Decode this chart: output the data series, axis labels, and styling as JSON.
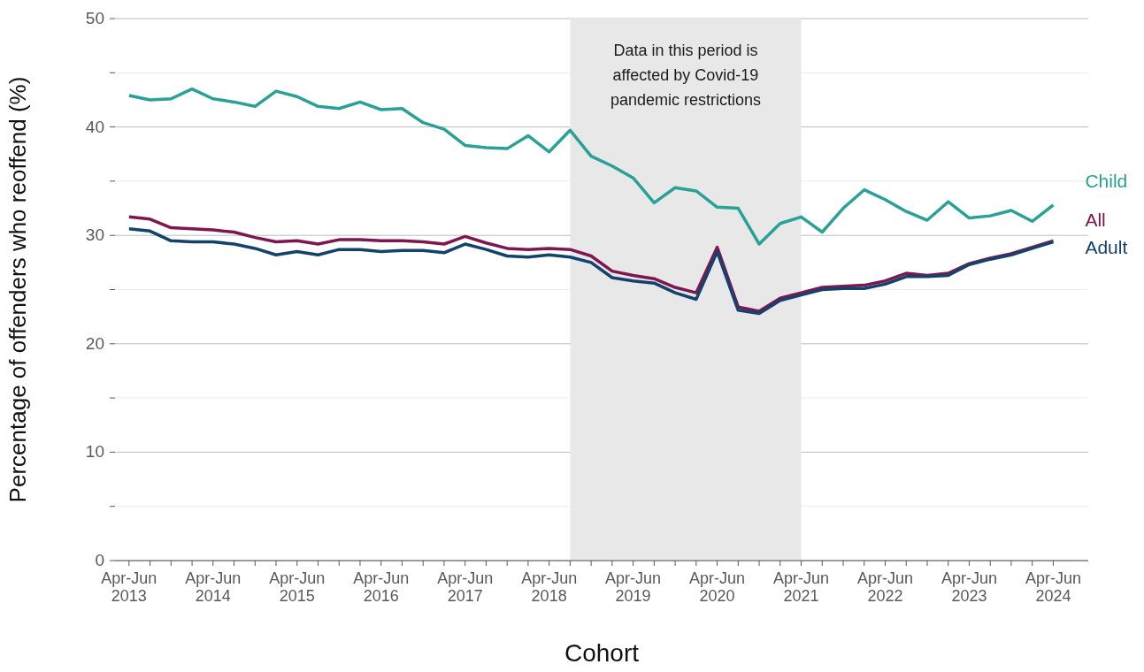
{
  "chart_data": {
    "type": "line",
    "xlabel": "Cohort",
    "ylabel": "Percentage of offenders who reoffend (%)",
    "x": [
      "2013-04",
      "2013-07",
      "2013-10",
      "2014-01",
      "2014-04",
      "2014-07",
      "2014-10",
      "2015-01",
      "2015-04",
      "2015-07",
      "2015-10",
      "2016-01",
      "2016-04",
      "2016-07",
      "2016-10",
      "2017-01",
      "2017-04",
      "2017-07",
      "2017-10",
      "2018-01",
      "2018-04",
      "2018-07",
      "2018-10",
      "2019-01",
      "2019-04",
      "2019-07",
      "2019-10",
      "2020-01",
      "2020-04",
      "2020-07",
      "2020-10",
      "2021-01",
      "2021-04",
      "2021-07",
      "2021-10",
      "2022-01",
      "2022-04",
      "2022-07",
      "2022-10",
      "2023-01",
      "2023-04",
      "2023-07",
      "2023-10",
      "2024-01",
      "2024-04"
    ],
    "series": [
      {
        "name": "Child",
        "color": "#28a197",
        "values": [
          42.9,
          42.5,
          42.6,
          43.5,
          42.6,
          42.3,
          41.9,
          43.3,
          42.8,
          41.9,
          41.7,
          42.3,
          41.6,
          41.7,
          40.4,
          39.8,
          38.3,
          38.1,
          38.0,
          39.2,
          37.7,
          39.7,
          37.3,
          36.4,
          35.3,
          33.0,
          34.4,
          34.1,
          32.6,
          32.5,
          29.2,
          31.1,
          31.7,
          30.3,
          32.5,
          34.2,
          33.3,
          32.2,
          31.4,
          33.1,
          31.6,
          31.8,
          32.3,
          31.3,
          32.8
        ]
      },
      {
        "name": "All",
        "color": "#801650",
        "values": [
          31.7,
          31.5,
          30.7,
          30.6,
          30.5,
          30.3,
          29.8,
          29.4,
          29.5,
          29.2,
          29.6,
          29.6,
          29.5,
          29.5,
          29.4,
          29.2,
          29.9,
          29.3,
          28.8,
          28.7,
          28.8,
          28.7,
          28.1,
          26.7,
          26.3,
          26.0,
          25.2,
          24.7,
          28.9,
          23.4,
          23.0,
          24.2,
          24.7,
          25.2,
          25.3,
          25.4,
          25.8,
          26.5,
          26.3,
          26.5,
          27.4,
          27.9,
          28.3,
          28.9,
          29.5
        ]
      },
      {
        "name": "Adult",
        "color": "#12436d",
        "values": [
          30.6,
          30.4,
          29.5,
          29.4,
          29.4,
          29.2,
          28.8,
          28.2,
          28.5,
          28.2,
          28.7,
          28.7,
          28.5,
          28.6,
          28.6,
          28.4,
          29.2,
          28.7,
          28.1,
          28.0,
          28.2,
          28.0,
          27.5,
          26.1,
          25.8,
          25.6,
          24.7,
          24.1,
          28.5,
          23.1,
          22.8,
          24.0,
          24.5,
          25.0,
          25.1,
          25.1,
          25.5,
          26.2,
          26.2,
          26.3,
          27.3,
          27.8,
          28.2,
          28.8,
          29.4
        ]
      }
    ],
    "xlim": [
      "2013-02",
      "2024-09"
    ],
    "xticks": [
      {
        "value": "2013-04",
        "label": "Apr-Jun\n2013"
      },
      {
        "value": "2013-07",
        "label": null
      },
      {
        "value": "2013-10",
        "label": null
      },
      {
        "value": "2014-01",
        "label": null
      },
      {
        "value": "2014-04",
        "label": "Apr-Jun\n2014"
      },
      {
        "value": "2014-07",
        "label": null
      },
      {
        "value": "2014-10",
        "label": null
      },
      {
        "value": "2015-01",
        "label": null
      },
      {
        "value": "2015-04",
        "label": "Apr-Jun\n2015"
      },
      {
        "value": "2015-07",
        "label": null
      },
      {
        "value": "2015-10",
        "label": null
      },
      {
        "value": "2016-01",
        "label": null
      },
      {
        "value": "2016-04",
        "label": "Apr-Jun\n2016"
      },
      {
        "value": "2016-07",
        "label": null
      },
      {
        "value": "2016-10",
        "label": null
      },
      {
        "value": "2017-01",
        "label": null
      },
      {
        "value": "2017-04",
        "label": "Apr-Jun\n2017"
      },
      {
        "value": "2017-07",
        "label": null
      },
      {
        "value": "2017-10",
        "label": null
      },
      {
        "value": "2018-01",
        "label": null
      },
      {
        "value": "2018-04",
        "label": "Apr-Jun\n2018"
      },
      {
        "value": "2018-07",
        "label": null
      },
      {
        "value": "2018-10",
        "label": null
      },
      {
        "value": "2019-01",
        "label": null
      },
      {
        "value": "2019-04",
        "label": "Apr-Jun\n2019"
      },
      {
        "value": "2019-07",
        "label": null
      },
      {
        "value": "2019-10",
        "label": null
      },
      {
        "value": "2020-01",
        "label": null
      },
      {
        "value": "2020-04",
        "label": "Apr-Jun\n2020"
      },
      {
        "value": "2020-07",
        "label": null
      },
      {
        "value": "2020-10",
        "label": null
      },
      {
        "value": "2021-01",
        "label": null
      },
      {
        "value": "2021-04",
        "label": "Apr-Jun\n2021"
      },
      {
        "value": "2021-07",
        "label": null
      },
      {
        "value": "2021-10",
        "label": null
      },
      {
        "value": "2022-01",
        "label": null
      },
      {
        "value": "2022-04",
        "label": "Apr-Jun\n2022"
      },
      {
        "value": "2022-07",
        "label": null
      },
      {
        "value": "2022-10",
        "label": null
      },
      {
        "value": "2023-01",
        "label": null
      },
      {
        "value": "2023-04",
        "label": "Apr-Jun\n2023"
      },
      {
        "value": "2023-07",
        "label": null
      },
      {
        "value": "2023-10",
        "label": null
      },
      {
        "value": "2024-01",
        "label": null
      },
      {
        "value": "2024-04",
        "label": "Apr-Jun\n2024"
      }
    ],
    "ylim": [
      0,
      50
    ],
    "yticks": [
      0,
      {
        "value": 5,
        "label": null
      },
      10,
      {
        "value": 15,
        "label": null
      },
      20,
      {
        "value": 25,
        "label": null
      },
      30,
      {
        "value": 35,
        "label": null
      },
      40,
      {
        "value": 45,
        "label": null
      },
      50
    ],
    "bands": [
      {
        "axis": "x",
        "from": "2018-07",
        "to": "2021-04",
        "label": "Data in this period is\naffected by Covid-19\npandemic restrictions",
        "color": "#e8e8e8"
      }
    ],
    "grid": "y",
    "marker": "none",
    "line_style": "solid"
  }
}
